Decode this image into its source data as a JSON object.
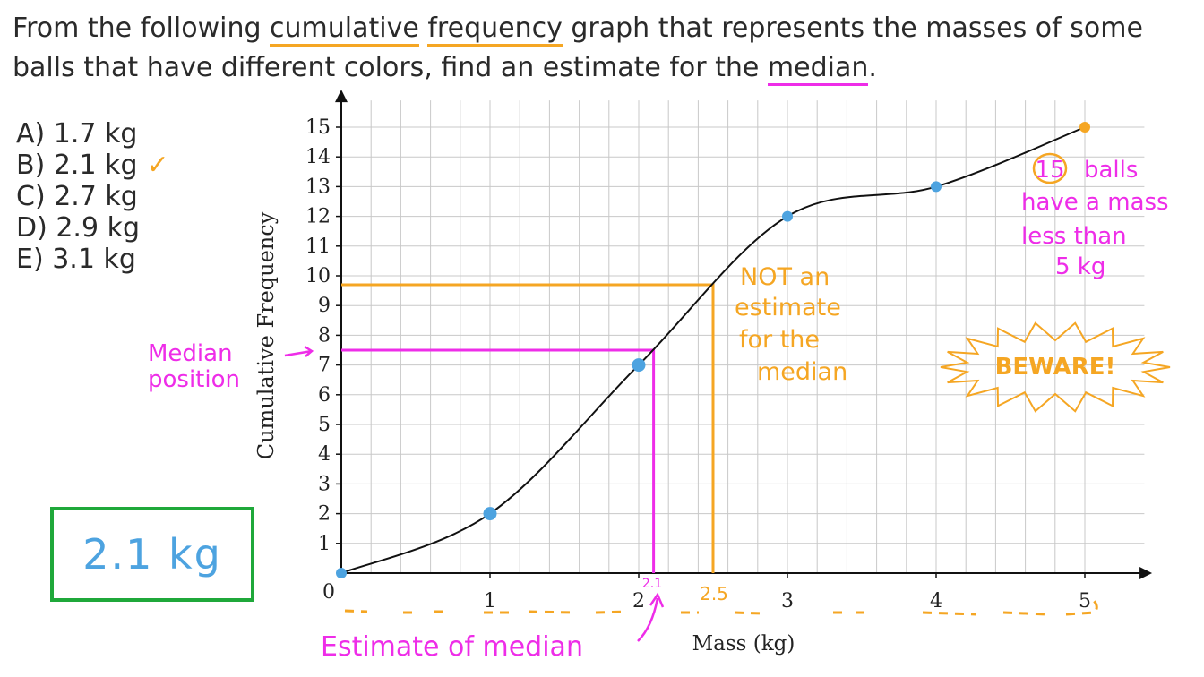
{
  "question": {
    "part1": "From the following ",
    "cumulative": "cumulative",
    "space": " ",
    "frequency": "frequency",
    "part2": " graph that represents the masses of some balls that have different colors, find an estimate for the ",
    "median": "median",
    "end": "."
  },
  "options": [
    {
      "label": "A) 1.7 kg"
    },
    {
      "label": "B) 2.1 kg"
    },
    {
      "label": "C) 2.7 kg"
    },
    {
      "label": "D) 2.9 kg"
    },
    {
      "label": "E) 3.1 kg"
    }
  ],
  "correct_mark": "✓",
  "answer": "2.1 kg",
  "annotations": {
    "median_position_line1": "Median",
    "median_position_line2": "position",
    "not_estimate": [
      "NOT an",
      "estimate",
      "for the",
      "median"
    ],
    "fifteen": "15",
    "balls_note": [
      "balls",
      "have a mass",
      "less than",
      "5 kg"
    ],
    "beware": "BEWARE!",
    "estimate_of_median": "Estimate of median",
    "label_2_1": "2.1",
    "label_2_5": "2.5"
  },
  "colors": {
    "orange": "#f5a623",
    "pink": "#ee2de8",
    "blue_point": "#4da3e0",
    "green_box": "#1fa83a",
    "grid": "#c8c8c8"
  },
  "chart_data": {
    "type": "line",
    "xlabel": "Mass (kg)",
    "ylabel": "Cumulative Frequency",
    "xlim": [
      0,
      5
    ],
    "ylim": [
      0,
      15
    ],
    "x_ticks": [
      "0",
      "1",
      "2",
      "3",
      "4",
      "5"
    ],
    "y_ticks": [
      "1",
      "2",
      "3",
      "4",
      "5",
      "6",
      "7",
      "8",
      "9",
      "10",
      "11",
      "12",
      "13",
      "14",
      "15"
    ],
    "grid": true,
    "series": [
      {
        "x": [
          0,
          1,
          2,
          3,
          4,
          5
        ],
        "y": [
          0,
          2,
          7,
          12,
          13,
          15
        ]
      }
    ],
    "median_line": {
      "y": 7.5,
      "x": 2.1
    },
    "wrong_line": {
      "y": 9.7,
      "x": 2.5
    }
  }
}
